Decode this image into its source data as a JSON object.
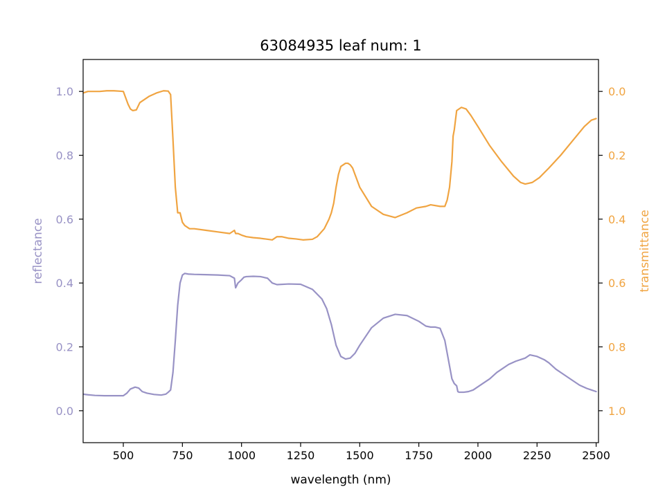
{
  "chart_data": {
    "type": "line",
    "title": "63084935 leaf num: 1",
    "xlabel": "wavelength (nm)",
    "xlim": [
      330,
      2510
    ],
    "x_ticks": [
      500,
      750,
      1000,
      1250,
      1500,
      1750,
      2000,
      2250,
      2500
    ],
    "grid": false,
    "left_axis": {
      "label": "reflectance",
      "ylim": [
        -0.1,
        1.1
      ],
      "ticks": [
        0.0,
        0.2,
        0.4,
        0.6,
        0.8,
        1.0
      ],
      "color": "#9892c5"
    },
    "right_axis": {
      "label": "transmittance",
      "ylim": [
        1.1,
        -0.1
      ],
      "inverted": true,
      "ticks": [
        0.0,
        0.2,
        0.4,
        0.6,
        0.8,
        1.0
      ],
      "color": "#f0a441"
    },
    "series": [
      {
        "axis": "left",
        "color": "#9892c5",
        "x": [
          330,
          350,
          380,
          420,
          450,
          480,
          500,
          515,
          530,
          550,
          565,
          580,
          600,
          630,
          660,
          680,
          690,
          700,
          710,
          720,
          730,
          740,
          750,
          760,
          775,
          800,
          850,
          900,
          950,
          970,
          975,
          985,
          1000,
          1010,
          1020,
          1050,
          1080,
          1110,
          1130,
          1150,
          1200,
          1250,
          1300,
          1340,
          1360,
          1380,
          1400,
          1420,
          1440,
          1460,
          1480,
          1500,
          1550,
          1600,
          1650,
          1700,
          1750,
          1780,
          1800,
          1820,
          1840,
          1860,
          1880,
          1890,
          1900,
          1910,
          1915,
          1920,
          1940,
          1960,
          1980,
          2000,
          2020,
          2050,
          2080,
          2100,
          2130,
          2160,
          2200,
          2220,
          2250,
          2280,
          2300,
          2330,
          2360,
          2400,
          2430,
          2460,
          2480,
          2500
        ],
        "values": [
          0.052,
          0.05,
          0.048,
          0.047,
          0.047,
          0.047,
          0.047,
          0.055,
          0.068,
          0.074,
          0.071,
          0.06,
          0.055,
          0.051,
          0.049,
          0.052,
          0.058,
          0.065,
          0.12,
          0.22,
          0.33,
          0.4,
          0.425,
          0.43,
          0.428,
          0.427,
          0.426,
          0.425,
          0.423,
          0.415,
          0.385,
          0.4,
          0.41,
          0.418,
          0.42,
          0.421,
          0.42,
          0.415,
          0.4,
          0.395,
          0.397,
          0.396,
          0.38,
          0.35,
          0.32,
          0.27,
          0.205,
          0.17,
          0.162,
          0.165,
          0.18,
          0.205,
          0.26,
          0.29,
          0.302,
          0.298,
          0.28,
          0.265,
          0.262,
          0.262,
          0.258,
          0.22,
          0.14,
          0.1,
          0.085,
          0.078,
          0.06,
          0.058,
          0.058,
          0.06,
          0.065,
          0.075,
          0.085,
          0.1,
          0.12,
          0.13,
          0.145,
          0.155,
          0.165,
          0.175,
          0.17,
          0.16,
          0.15,
          0.13,
          0.115,
          0.095,
          0.08,
          0.07,
          0.065,
          0.06
        ]
      },
      {
        "axis": "right",
        "color": "#f0a441",
        "x": [
          330,
          350,
          380,
          400,
          430,
          460,
          480,
          500,
          510,
          520,
          530,
          540,
          555,
          570,
          590,
          610,
          640,
          670,
          690,
          700,
          710,
          720,
          730,
          740,
          750,
          760,
          780,
          800,
          850,
          900,
          950,
          970,
          975,
          985,
          1000,
          1020,
          1050,
          1080,
          1100,
          1130,
          1150,
          1170,
          1200,
          1230,
          1260,
          1300,
          1320,
          1350,
          1370,
          1380,
          1390,
          1400,
          1410,
          1420,
          1440,
          1450,
          1460,
          1470,
          1480,
          1500,
          1550,
          1600,
          1650,
          1700,
          1740,
          1780,
          1800,
          1840,
          1860,
          1870,
          1880,
          1890,
          1895,
          1900,
          1905,
          1910,
          1930,
          1950,
          1970,
          2000,
          2050,
          2100,
          2150,
          2180,
          2200,
          2230,
          2260,
          2300,
          2350,
          2400,
          2450,
          2480,
          2500
        ],
        "values": [
          0.005,
          0.0,
          0.0,
          0.0,
          -0.002,
          -0.002,
          -0.001,
          0.0,
          0.02,
          0.04,
          0.055,
          0.06,
          0.058,
          0.035,
          0.025,
          0.015,
          0.005,
          -0.002,
          -0.001,
          0.01,
          0.15,
          0.3,
          0.38,
          0.38,
          0.41,
          0.42,
          0.43,
          0.43,
          0.435,
          0.44,
          0.445,
          0.435,
          0.445,
          0.445,
          0.45,
          0.455,
          0.458,
          0.46,
          0.462,
          0.465,
          0.455,
          0.455,
          0.46,
          0.462,
          0.465,
          0.463,
          0.455,
          0.43,
          0.4,
          0.38,
          0.35,
          0.3,
          0.26,
          0.235,
          0.225,
          0.225,
          0.23,
          0.24,
          0.26,
          0.3,
          0.36,
          0.385,
          0.395,
          0.38,
          0.365,
          0.36,
          0.355,
          0.36,
          0.36,
          0.34,
          0.3,
          0.22,
          0.14,
          0.12,
          0.09,
          0.06,
          0.05,
          0.055,
          0.075,
          0.11,
          0.17,
          0.22,
          0.265,
          0.285,
          0.29,
          0.285,
          0.27,
          0.24,
          0.2,
          0.155,
          0.11,
          0.09,
          0.085
        ]
      }
    ]
  }
}
